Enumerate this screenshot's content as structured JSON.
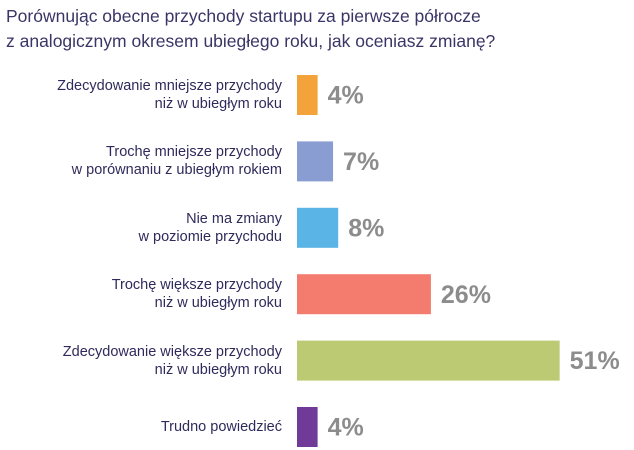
{
  "chart_data": {
    "type": "bar",
    "orientation": "horizontal",
    "title": "Porównując obecne przychody startupu za pierwsze półrocze\nz analogicznym okresem ubiegłego roku, jak oceniasz zmianę?",
    "categories": [
      "Zdecydowanie mniejsze przychody\nniż w ubiegłym roku",
      "Trochę mniejsze przychody\nw porównaniu z ubiegłym rokiem",
      "Nie ma zmiany\nw poziomie przychodu",
      "Trochę większe przychody\nniż w ubiegłym roku",
      "Zdecydowanie większe przychody\nniż w ubiegłym roku",
      "Trudno powiedzieć"
    ],
    "values": [
      4,
      7,
      8,
      26,
      51,
      4
    ],
    "value_labels": [
      "4%",
      "7%",
      "8%",
      "26%",
      "51%",
      "4%"
    ],
    "colors": [
      "#f4a23a",
      "#8a9dd3",
      "#5ab4e5",
      "#f47c6e",
      "#bccb73",
      "#6f3a98"
    ]
  }
}
